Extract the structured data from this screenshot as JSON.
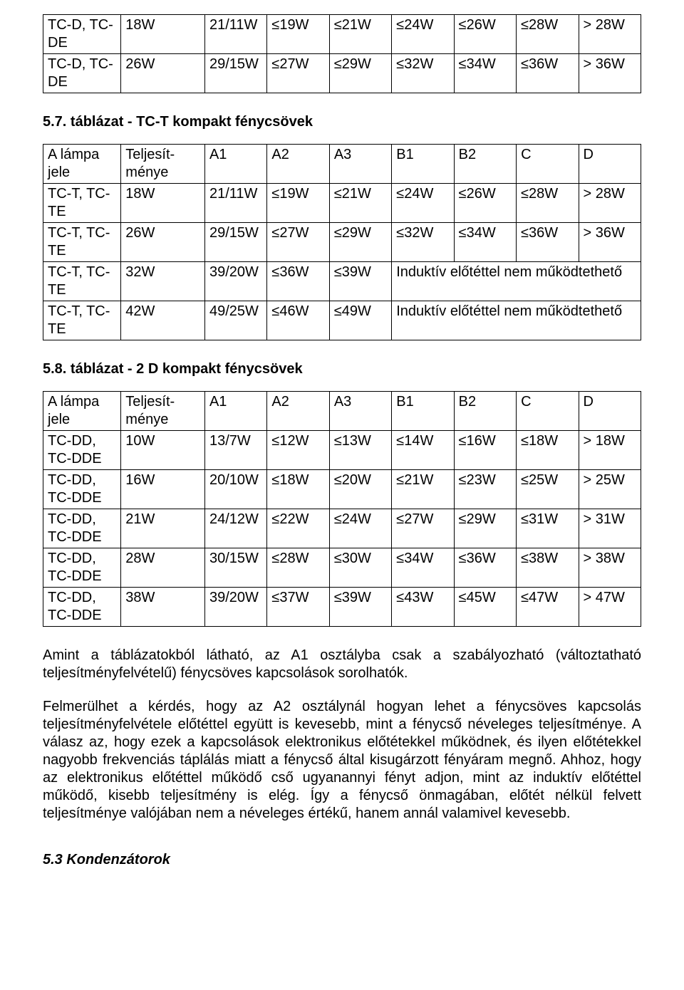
{
  "table1": {
    "rows": [
      [
        "TC-D, TC-DE",
        "18W",
        "21/11W",
        "≤19W",
        "≤21W",
        "≤24W",
        "≤26W",
        "≤28W",
        "> 28W"
      ],
      [
        "TC-D, TC-DE",
        "26W",
        "29/15W",
        "≤27W",
        "≤29W",
        "≤32W",
        "≤34W",
        "≤36W",
        "> 36W"
      ]
    ]
  },
  "heading2": "5.7. táblázat - TC-T kompakt fénycsövek",
  "table2": {
    "header": [
      "A lámpa jele",
      "Teljesít-ménye",
      "A1",
      "A2",
      "A3",
      "B1",
      "B2",
      "C",
      "D"
    ],
    "rows": [
      {
        "cells": [
          "TC-T, TC-TE",
          "18W",
          "21/11W",
          "≤19W",
          "≤21W",
          "≤24W",
          "≤26W",
          "≤28W",
          "> 28W"
        ]
      },
      {
        "cells": [
          "TC-T, TC-TE",
          "26W",
          "29/15W",
          "≤27W",
          "≤29W",
          "≤32W",
          "≤34W",
          "≤36W",
          "> 36W"
        ]
      },
      {
        "cells": [
          "TC-T, TC-TE",
          "32W",
          "39/20W",
          "≤36W",
          "≤39W"
        ],
        "merge": "Induktív előtéttel nem működtethető"
      },
      {
        "cells": [
          "TC-T, TC-TE",
          "42W",
          "49/25W",
          "≤46W",
          "≤49W"
        ],
        "merge": "Induktív előtéttel nem működtethető"
      }
    ]
  },
  "heading3": "5.8. táblázat - 2 D kompakt fénycsövek",
  "table3": {
    "header": [
      "A lámpa jele",
      "Teljesít-ménye",
      "A1",
      "A2",
      "A3",
      "B1",
      "B2",
      "C",
      "D"
    ],
    "rows": [
      [
        "TC-DD, TC-DDE",
        "10W",
        "13/7W",
        "≤12W",
        "≤13W",
        "≤14W",
        "≤16W",
        "≤18W",
        "> 18W"
      ],
      [
        "TC-DD, TC-DDE",
        "16W",
        "20/10W",
        "≤18W",
        "≤20W",
        "≤21W",
        "≤23W",
        "≤25W",
        "> 25W"
      ],
      [
        "TC-DD, TC-DDE",
        "21W",
        "24/12W",
        "≤22W",
        "≤24W",
        "≤27W",
        "≤29W",
        "≤31W",
        "> 31W"
      ],
      [
        "TC-DD, TC-DDE",
        "28W",
        "30/15W",
        "≤28W",
        "≤30W",
        "≤34W",
        "≤36W",
        "≤38W",
        "> 38W"
      ],
      [
        "TC-DD, TC-DDE",
        "38W",
        "39/20W",
        "≤37W",
        "≤39W",
        "≤43W",
        "≤45W",
        "≤47W",
        "> 47W"
      ]
    ]
  },
  "para1": "Amint a táblázatokból látható, az A1 osztályba csak a szabályozható (változtatható teljesítményfelvételű) fénycsöves kapcsolások sorolhatók.",
  "para2": "Felmerülhet a kérdés, hogy az A2 osztálynál hogyan lehet a fénycsöves kapcsolás teljesítményfelvétele előtéttel együtt is kevesebb, mint a fénycső néveleges teljesítménye. A válasz az, hogy ezek a kapcsolások elektronikus előtétekkel működnek, és ilyen előtétekkel nagyobb frekvenciás táplálás miatt a fénycső által kisugárzott fényáram megnő. Ahhoz, hogy az elektronikus előtéttel működő cső ugyanannyi fényt adjon, mint az induktív előtéttel működő, kisebb teljesítmény is elég. Így a fénycső önmagában, előtét nélkül felvett teljesítménye valójában nem a néveleges értékű, hanem annál valamivel kevesebb.",
  "section": "5.3 Kondenzátorok"
}
